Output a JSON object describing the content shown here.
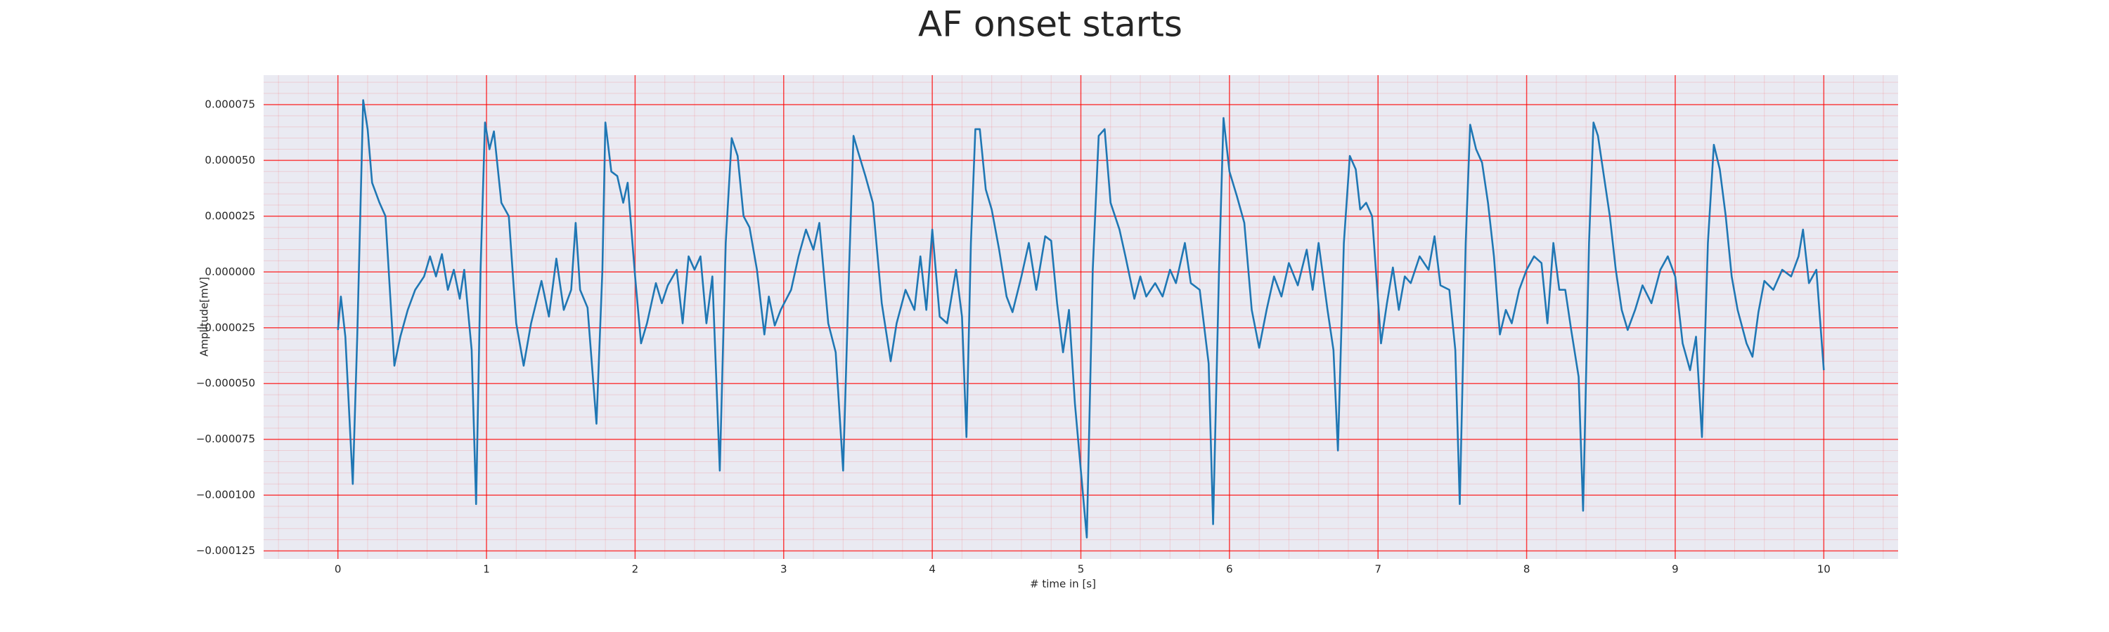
{
  "chart_data": {
    "type": "line",
    "title": "AF onset starts",
    "xlabel": "# time in [s]",
    "ylabel": "Amplitude[mV]",
    "color": "#1f77b4",
    "grid": true,
    "grid_color": "#ff0000",
    "minor_grid": true,
    "minor_divisions": 5,
    "xlim": [
      -0.5,
      10.5
    ],
    "ylim": [
      -0.0001286,
      8.82e-05
    ],
    "xticks": [
      0,
      1,
      2,
      3,
      4,
      5,
      6,
      7,
      8,
      9,
      10
    ],
    "yticks": [
      {
        "value": 7.5e-05,
        "label": "0.000075"
      },
      {
        "value": 5e-05,
        "label": "0.000050"
      },
      {
        "value": 2.5e-05,
        "label": "0.000025"
      },
      {
        "value": 0,
        "label": "0.000000"
      },
      {
        "value": -2.5e-05,
        "label": "−0.000025"
      },
      {
        "value": -5e-05,
        "label": "−0.000050"
      },
      {
        "value": -7.5e-05,
        "label": "−0.000075"
      },
      {
        "value": -0.0001,
        "label": "−0.000100"
      },
      {
        "value": -0.000125,
        "label": "−0.000125"
      }
    ],
    "x": [
      0,
      0.02,
      0.05,
      0.1,
      0.13,
      0.17,
      0.2,
      0.23,
      0.28,
      0.32,
      0.38,
      0.42,
      0.47,
      0.52,
      0.58,
      0.62,
      0.66,
      0.7,
      0.74,
      0.78,
      0.82,
      0.85,
      0.9,
      0.93,
      0.96,
      0.99,
      1.02,
      1.05,
      1.1,
      1.15,
      1.2,
      1.25,
      1.3,
      1.37,
      1.42,
      1.47,
      1.52,
      1.57,
      1.6,
      1.63,
      1.68,
      1.74,
      1.78,
      1.8,
      1.84,
      1.88,
      1.92,
      1.95,
      2.0,
      2.04,
      2.08,
      2.14,
      2.18,
      2.22,
      2.28,
      2.32,
      2.36,
      2.4,
      2.44,
      2.48,
      2.52,
      2.57,
      2.61,
      2.65,
      2.69,
      2.73,
      2.77,
      2.82,
      2.87,
      2.9,
      2.94,
      2.98,
      3.05,
      3.1,
      3.15,
      3.2,
      3.24,
      3.3,
      3.35,
      3.4,
      3.44,
      3.47,
      3.5,
      3.55,
      3.6,
      3.66,
      3.72,
      3.76,
      3.82,
      3.88,
      3.92,
      3.96,
      4.0,
      4.05,
      4.1,
      4.16,
      4.2,
      4.23,
      4.26,
      4.29,
      4.32,
      4.36,
      4.4,
      4.45,
      4.5,
      4.54,
      4.6,
      4.65,
      4.7,
      4.76,
      4.8,
      4.84,
      4.88,
      4.92,
      4.96,
      5.04,
      5.08,
      5.12,
      5.16,
      5.2,
      5.26,
      5.3,
      5.36,
      5.4,
      5.44,
      5.5,
      5.55,
      5.6,
      5.64,
      5.7,
      5.74,
      5.8,
      5.86,
      5.89,
      5.93,
      5.96,
      6.0,
      6.05,
      6.1,
      6.15,
      6.2,
      6.25,
      6.3,
      6.35,
      6.4,
      6.46,
      6.52,
      6.56,
      6.6,
      6.66,
      6.7,
      6.73,
      6.77,
      6.81,
      6.85,
      6.88,
      6.92,
      6.96,
      7.02,
      7.06,
      7.1,
      7.14,
      7.18,
      7.22,
      7.28,
      7.34,
      7.38,
      7.42,
      7.48,
      7.52,
      7.55,
      7.59,
      7.62,
      7.66,
      7.7,
      7.74,
      7.78,
      7.82,
      7.86,
      7.9,
      7.95,
      8.0,
      8.05,
      8.1,
      8.14,
      8.18,
      8.22,
      8.26,
      8.3,
      8.35,
      8.38,
      8.42,
      8.45,
      8.48,
      8.52,
      8.56,
      8.6,
      8.64,
      8.68,
      8.73,
      8.78,
      8.84,
      8.9,
      8.95,
      9.0,
      9.05,
      9.1,
      9.14,
      9.18,
      9.22,
      9.26,
      9.3,
      9.34,
      9.38,
      9.42,
      9.48,
      9.52,
      9.56,
      9.6,
      9.66,
      9.72,
      9.78,
      9.83,
      9.86,
      9.9,
      9.95,
      10.0
    ],
    "values": [
      -2.6e-05,
      -1.1e-05,
      -2.9e-05,
      -9.5e-05,
      -2.9e-05,
      7.7e-05,
      6.4e-05,
      4e-05,
      3.1e-05,
      2.5e-05,
      -4.2e-05,
      -2.9e-05,
      -1.7e-05,
      -8e-06,
      -2e-06,
      7e-06,
      -2e-06,
      8e-06,
      -8e-06,
      1e-06,
      -1.2e-05,
      1e-06,
      -3.5e-05,
      -0.000104,
      1e-06,
      6.7e-05,
      5.5e-05,
      6.3e-05,
      3.1e-05,
      2.5e-05,
      -2.3e-05,
      -4.2e-05,
      -2.3e-05,
      -4e-06,
      -2e-05,
      6e-06,
      -1.7e-05,
      -8e-06,
      2.2e-05,
      -8e-06,
      -1.6e-05,
      -6.8e-05,
      1e-06,
      6.7e-05,
      4.5e-05,
      4.3e-05,
      3.1e-05,
      4e-05,
      -2e-06,
      -3.2e-05,
      -2.3e-05,
      -5e-06,
      -1.4e-05,
      -6e-06,
      1e-06,
      -2.3e-05,
      7e-06,
      1e-06,
      7e-06,
      -2.3e-05,
      -2e-06,
      -8.9e-05,
      1.3e-05,
      6e-05,
      5.2e-05,
      2.5e-05,
      2e-05,
      1e-06,
      -2.8e-05,
      -1.1e-05,
      -2.4e-05,
      -1.7e-05,
      -8e-06,
      7e-06,
      1.9e-05,
      1e-05,
      2.2e-05,
      -2.3e-05,
      -3.6e-05,
      -8.9e-05,
      1e-06,
      6.1e-05,
      5.4e-05,
      4.3e-05,
      3.1e-05,
      -1.4e-05,
      -4e-05,
      -2.3e-05,
      -8e-06,
      -1.7e-05,
      7e-06,
      -1.7e-05,
      1.9e-05,
      -2e-05,
      -2.3e-05,
      1e-06,
      -2e-05,
      -7.4e-05,
      1.3e-05,
      6.4e-05,
      6.4e-05,
      3.7e-05,
      2.8e-05,
      1e-05,
      -1.1e-05,
      -1.8e-05,
      -2e-06,
      1.3e-05,
      -8e-06,
      1.6e-05,
      1.4e-05,
      -1.4e-05,
      -3.6e-05,
      -1.7e-05,
      -5.9e-05,
      -0.000119,
      1e-06,
      6.1e-05,
      6.4e-05,
      3.1e-05,
      1.9e-05,
      7e-06,
      -1.2e-05,
      -2e-06,
      -1.1e-05,
      -5e-06,
      -1.1e-05,
      1e-06,
      -5e-06,
      1.3e-05,
      -5e-06,
      -8e-06,
      -4.1e-05,
      -0.000113,
      1e-06,
      6.9e-05,
      4.5e-05,
      3.4e-05,
      2.2e-05,
      -1.7e-05,
      -3.4e-05,
      -1.7e-05,
      -2e-06,
      -1.1e-05,
      4e-06,
      -6e-06,
      1e-05,
      -8e-06,
      1.3e-05,
      -1.7e-05,
      -3.5e-05,
      -8e-05,
      1.3e-05,
      5.2e-05,
      4.6e-05,
      2.8e-05,
      3.1e-05,
      2.5e-05,
      -3.2e-05,
      -1.4e-05,
      2e-06,
      -1.7e-05,
      -2e-06,
      -5e-06,
      7e-06,
      1e-06,
      1.6e-05,
      -6e-06,
      -8e-06,
      -3.5e-05,
      -0.000104,
      1.3e-05,
      6.6e-05,
      5.5e-05,
      4.9e-05,
      3.1e-05,
      7e-06,
      -2.8e-05,
      -1.7e-05,
      -2.3e-05,
      -8e-06,
      1e-06,
      7e-06,
      4e-06,
      -2.3e-05,
      1.3e-05,
      -8e-06,
      -8e-06,
      -2.6e-05,
      -4.7e-05,
      -0.000107,
      1.3e-05,
      6.7e-05,
      6.1e-05,
      4.3e-05,
      2.5e-05,
      1e-06,
      -1.7e-05,
      -2.6e-05,
      -1.7e-05,
      -6e-06,
      -1.4e-05,
      1e-06,
      7e-06,
      -2e-06,
      -3.2e-05,
      -4.4e-05,
      -2.9e-05,
      -7.4e-05,
      1.3e-05,
      5.7e-05,
      4.6e-05,
      2.5e-05,
      -2e-06,
      -1.7e-05,
      -3.2e-05,
      -3.8e-05,
      -1.8e-05,
      -4e-06,
      -8e-06,
      1e-06,
      -2e-06,
      7e-06,
      1.9e-05,
      -5e-06,
      1e-06,
      -4.4e-05
    ]
  }
}
